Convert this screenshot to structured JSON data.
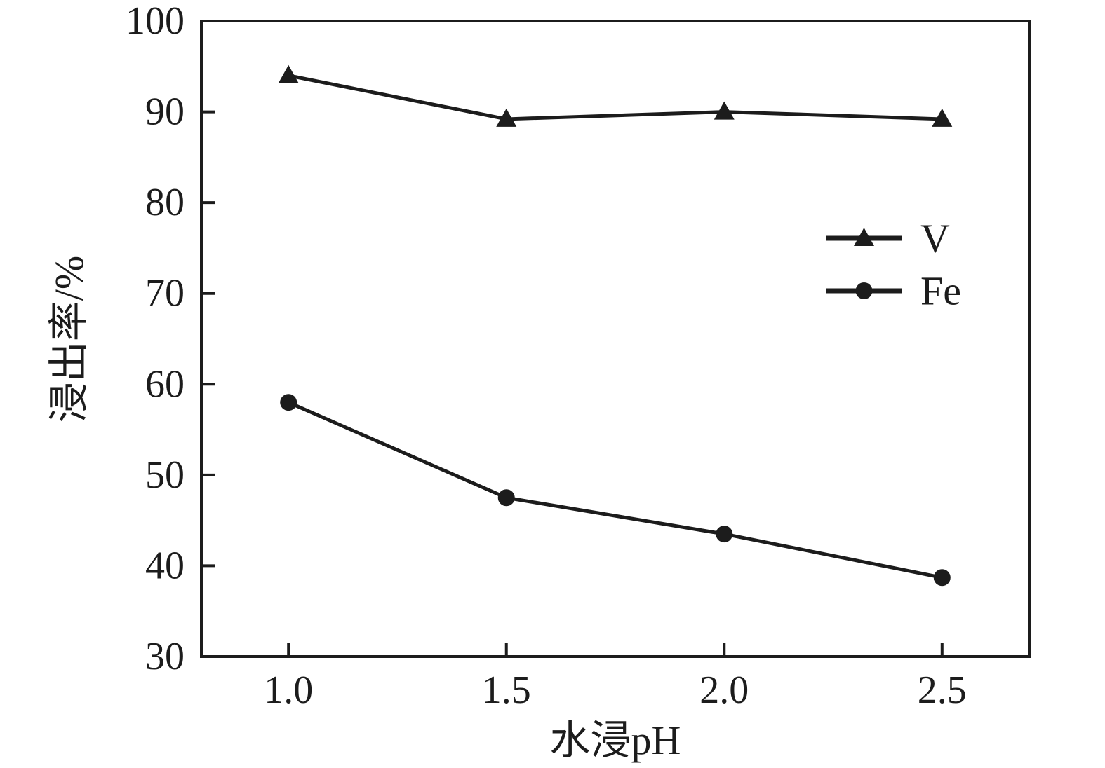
{
  "figure": {
    "background": "#ffffff",
    "ink_color": "#1c1c1c"
  },
  "chart_data": {
    "type": "line",
    "x": [
      1.0,
      1.5,
      2.0,
      2.5
    ],
    "series": [
      {
        "name": "V",
        "marker": "triangle",
        "values": [
          94.0,
          89.2,
          90.0,
          89.2
        ]
      },
      {
        "name": "Fe",
        "marker": "circle",
        "values": [
          58.0,
          47.5,
          43.5,
          38.7
        ]
      }
    ],
    "title": "",
    "xlabel": "水浸pH",
    "ylabel": "浸出率/%",
    "xlim": [
      0.8,
      2.7
    ],
    "ylim": [
      30,
      100
    ],
    "xtick_values": [
      1.0,
      1.5,
      2.0,
      2.5
    ],
    "xtick_labels": [
      "1.0",
      "1.5",
      "2.0",
      "2.5"
    ],
    "ytick_values": [
      30,
      40,
      50,
      60,
      70,
      80,
      90,
      100
    ],
    "ytick_labels": [
      "30",
      "40",
      "50",
      "60",
      "70",
      "80",
      "90",
      "100"
    ],
    "grid": false,
    "legend": {
      "position": "right-center",
      "entries": [
        "V",
        "Fe"
      ]
    }
  }
}
